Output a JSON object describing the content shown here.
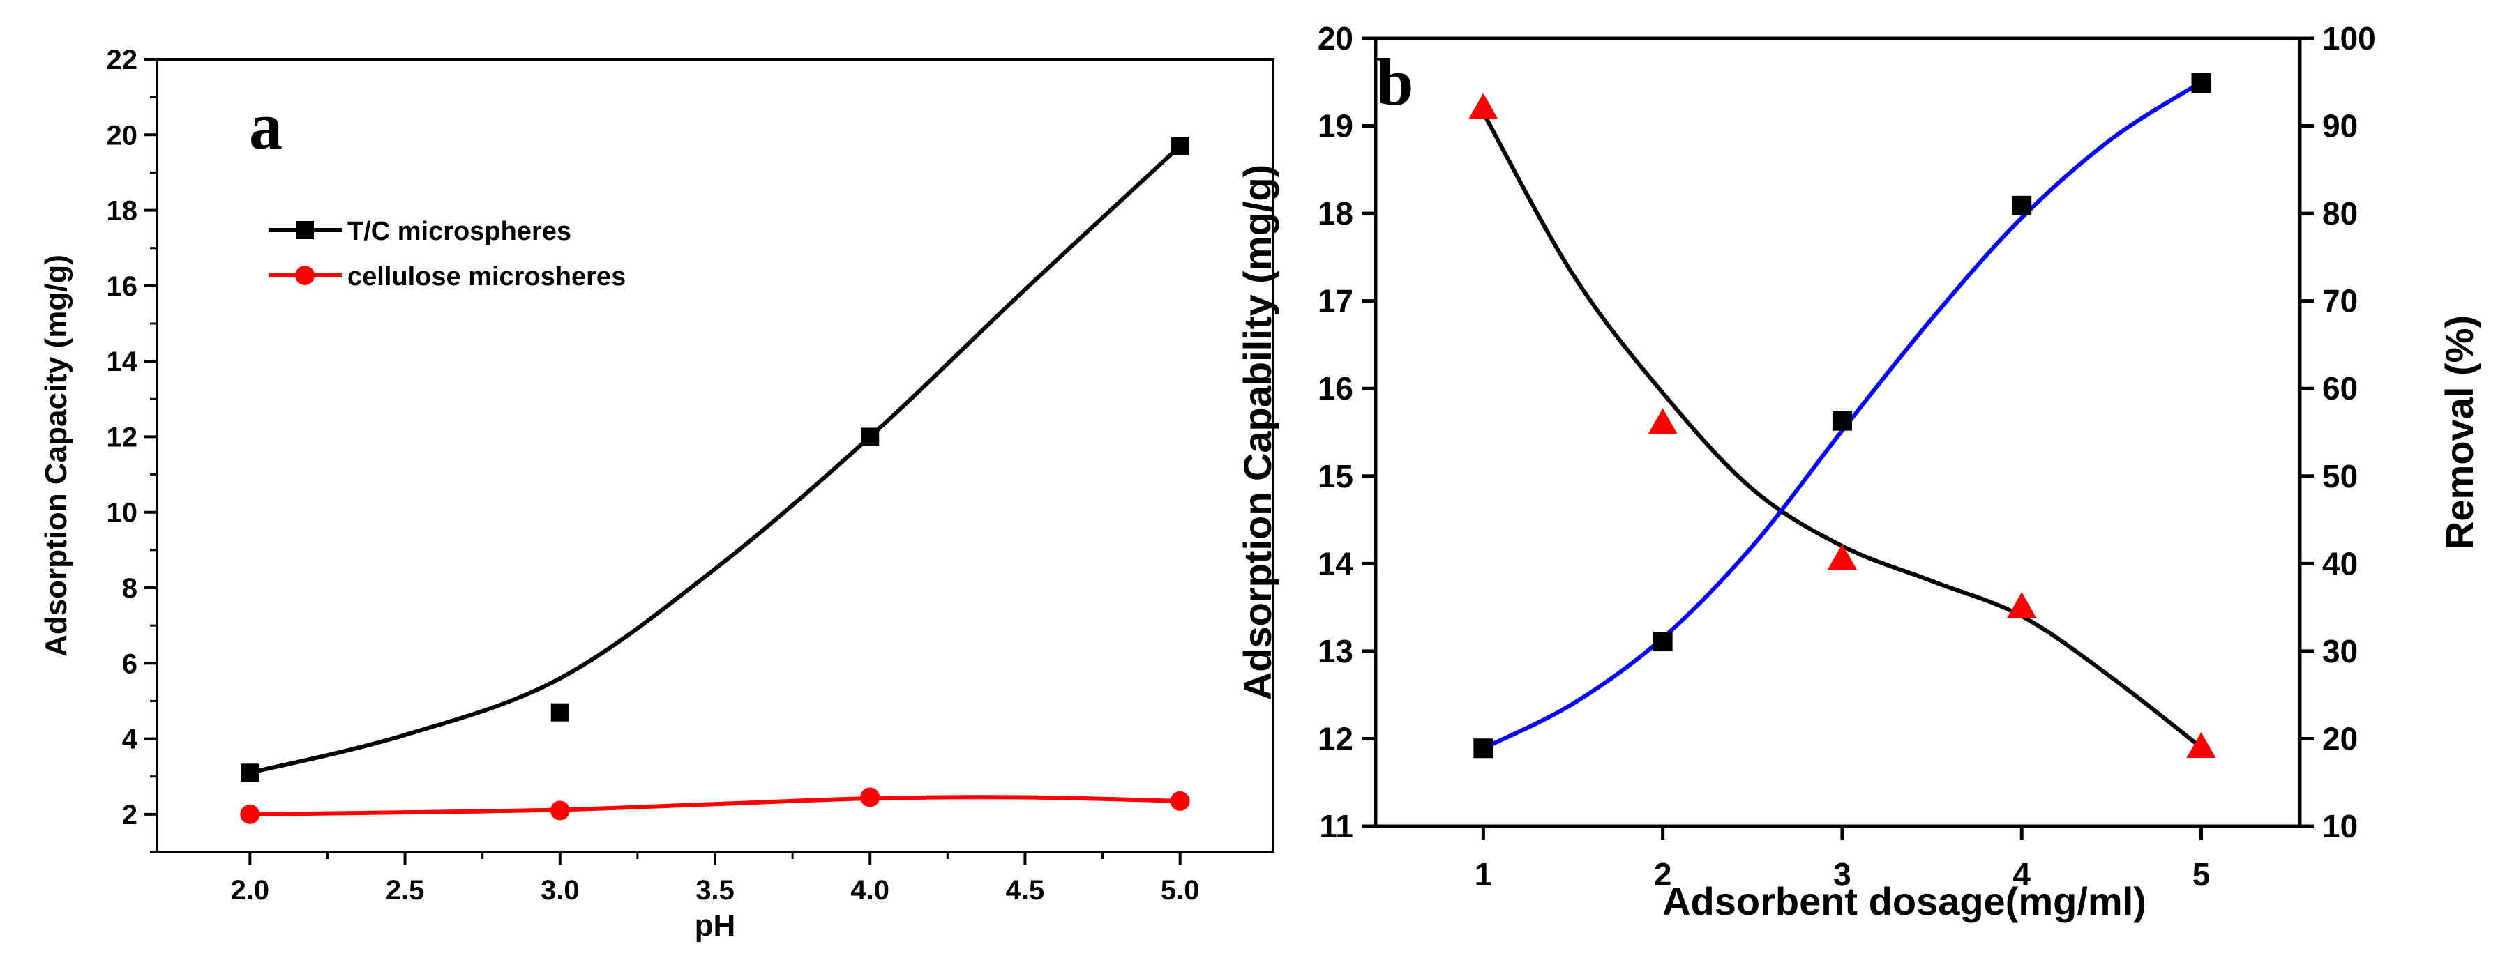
{
  "chart_data": [
    {
      "type": "line",
      "panel_label": "a",
      "title": "",
      "xlabel": "pH",
      "ylabel": "Adsorption Capacity (mg/g)",
      "xlim": [
        1.7,
        5.3
      ],
      "ylim": [
        1,
        22
      ],
      "xticks": [
        2.0,
        2.5,
        3.0,
        3.5,
        4.0,
        4.5,
        5.0
      ],
      "xtick_labels": [
        "2.0",
        "2.5",
        "3.0",
        "3.5",
        "4.0",
        "4.5",
        "5.0"
      ],
      "yticks": [
        2,
        4,
        6,
        8,
        10,
        12,
        14,
        16,
        18,
        20,
        22
      ],
      "ytick_labels": [
        "2",
        "4",
        "6",
        "8",
        "10",
        "12",
        "14",
        "16",
        "18",
        "20",
        "22"
      ],
      "legend_position": "top-left",
      "series": [
        {
          "name": "T/C microspheres",
          "color": "#000000",
          "marker": "square",
          "x": [
            2.0,
            3.0,
            4.0,
            5.0
          ],
          "y": [
            3.1,
            4.7,
            12.0,
            19.7
          ],
          "fit_curve": [
            [
              2.0,
              3.1
            ],
            [
              2.5,
              4.1
            ],
            [
              3.0,
              5.6
            ],
            [
              3.5,
              8.5
            ],
            [
              4.0,
              12.0
            ],
            [
              4.5,
              15.9
            ],
            [
              5.0,
              19.7
            ]
          ]
        },
        {
          "name": "cellulose microsheres",
          "color": "#ff0000",
          "marker": "circle",
          "x": [
            2.0,
            3.0,
            4.0,
            5.0
          ],
          "y": [
            2.0,
            2.1,
            2.45,
            2.35
          ],
          "fit_curve": [
            [
              2.0,
              2.0
            ],
            [
              2.5,
              2.05
            ],
            [
              3.0,
              2.12
            ],
            [
              3.5,
              2.27
            ],
            [
              4.0,
              2.42
            ],
            [
              4.5,
              2.45
            ],
            [
              5.0,
              2.35
            ]
          ]
        }
      ]
    },
    {
      "type": "line",
      "panel_label": "b",
      "title": "",
      "xlabel": "Adsorbent dosage(mg/ml)",
      "ylabel": "Adsorption Capability (mg/g)",
      "ylabel_right": "Removal (%)",
      "xlim": [
        0.4,
        5.55
      ],
      "ylim": [
        11,
        20
      ],
      "ylim_right": [
        10,
        100
      ],
      "xticks": [
        1,
        2,
        3,
        4,
        5
      ],
      "xtick_labels": [
        "1",
        "2",
        "3",
        "4",
        "5"
      ],
      "yticks": [
        11,
        12,
        13,
        14,
        15,
        16,
        17,
        18,
        19,
        20
      ],
      "ytick_labels": [
        "11",
        "12",
        "13",
        "14",
        "15",
        "16",
        "17",
        "18",
        "19",
        "20"
      ],
      "yticks_right": [
        10,
        20,
        30,
        40,
        50,
        60,
        70,
        80,
        90,
        100
      ],
      "ytick_labels_right": [
        "10",
        "20",
        "30",
        "40",
        "50",
        "60",
        "70",
        "80",
        "90",
        "100"
      ],
      "series": [
        {
          "name": "Adsorption Capability",
          "axis": "left",
          "marker": "triangle",
          "marker_color": "#ff0000",
          "line_color": "#000000",
          "x": [
            1,
            2,
            3,
            4,
            5
          ],
          "y": [
            19.2,
            15.6,
            14.05,
            13.5,
            11.9
          ],
          "fit_curve": [
            [
              1,
              19.15
            ],
            [
              1.5,
              17.3
            ],
            [
              2,
              15.95
            ],
            [
              2.5,
              14.85
            ],
            [
              3,
              14.2
            ],
            [
              3.5,
              13.8
            ],
            [
              4,
              13.4
            ],
            [
              4.5,
              12.7
            ],
            [
              5,
              11.9
            ]
          ]
        },
        {
          "name": "Removal",
          "axis": "right",
          "marker": "square",
          "marker_color": "#000000",
          "line_color": "#0000ff",
          "x": [
            1,
            2,
            3,
            4,
            5
          ],
          "y": [
            18.9,
            31.1,
            56.3,
            80.9,
            94.9
          ],
          "fit_curve": [
            [
              1,
              18.9
            ],
            [
              1.5,
              24.0
            ],
            [
              2,
              31.5
            ],
            [
              2.5,
              42.0
            ],
            [
              3,
              55.2
            ],
            [
              3.5,
              68.0
            ],
            [
              4,
              79.5
            ],
            [
              4.5,
              88.5
            ],
            [
              5,
              95.0
            ]
          ]
        }
      ]
    }
  ]
}
